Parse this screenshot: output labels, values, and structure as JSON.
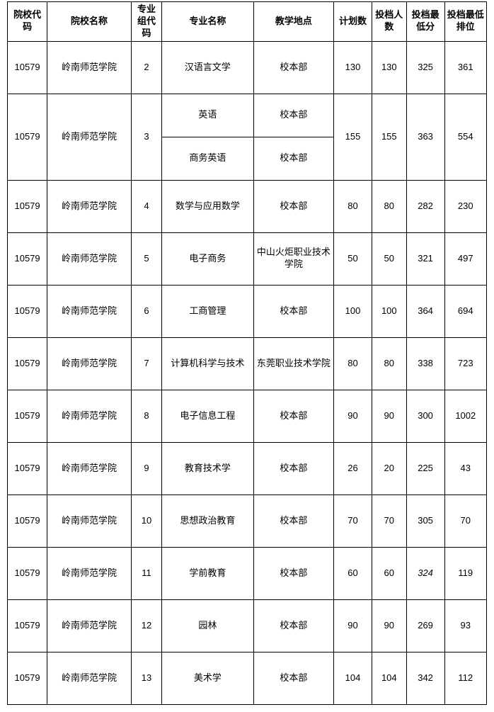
{
  "headers": {
    "col0": "院校代码",
    "col1": "院校名称",
    "col2": "专业组代码",
    "col3": "专业名称",
    "col4": "教学地点",
    "col5": "计划数",
    "col6": "投档人数",
    "col7": "投档最低分",
    "col8": "投档最低排位"
  },
  "colWidths": {
    "c0": 52,
    "c1": 110,
    "c2": 40,
    "c3": 120,
    "c4": 105,
    "c5": 50,
    "c6": 45,
    "c7": 50,
    "c8": 55
  },
  "rows": [
    {
      "code": "10579",
      "name": "岭南师范学院",
      "group": "2",
      "majors": [
        {
          "major": "汉语言文学",
          "loc": "校本部"
        }
      ],
      "plan": "130",
      "enroll": "130",
      "min": "325",
      "rank": "361"
    },
    {
      "code": "10579",
      "name": "岭南师范学院",
      "group": "3",
      "majors": [
        {
          "major": "英语",
          "loc": "校本部"
        },
        {
          "major": "商务英语",
          "loc": "校本部"
        }
      ],
      "plan": "155",
      "enroll": "155",
      "min": "363",
      "rank": "554"
    },
    {
      "code": "10579",
      "name": "岭南师范学院",
      "group": "4",
      "majors": [
        {
          "major": "数学与应用数学",
          "loc": "校本部"
        }
      ],
      "plan": "80",
      "enroll": "80",
      "min": "282",
      "rank": "230"
    },
    {
      "code": "10579",
      "name": "岭南师范学院",
      "group": "5",
      "majors": [
        {
          "major": "电子商务",
          "loc": "中山火炬职业技术学院"
        }
      ],
      "plan": "50",
      "enroll": "50",
      "min": "321",
      "rank": "497"
    },
    {
      "code": "10579",
      "name": "岭南师范学院",
      "group": "6",
      "majors": [
        {
          "major": "工商管理",
          "loc": "校本部"
        }
      ],
      "plan": "100",
      "enroll": "100",
      "min": "364",
      "rank": "694"
    },
    {
      "code": "10579",
      "name": "岭南师范学院",
      "group": "7",
      "majors": [
        {
          "major": "计算机科学与技术",
          "loc": "东莞职业技术学院"
        }
      ],
      "plan": "80",
      "enroll": "80",
      "min": "338",
      "rank": "723"
    },
    {
      "code": "10579",
      "name": "岭南师范学院",
      "group": "8",
      "majors": [
        {
          "major": "电子信息工程",
          "loc": "校本部"
        }
      ],
      "plan": "90",
      "enroll": "90",
      "min": "300",
      "rank": "1002"
    },
    {
      "code": "10579",
      "name": "岭南师范学院",
      "group": "9",
      "majors": [
        {
          "major": "教育技术学",
          "loc": "校本部"
        }
      ],
      "plan": "26",
      "enroll": "20",
      "min": "225",
      "rank": "43"
    },
    {
      "code": "10579",
      "name": "岭南师范学院",
      "group": "10",
      "majors": [
        {
          "major": "思想政治教育",
          "loc": "校本部"
        }
      ],
      "plan": "70",
      "enroll": "70",
      "min": "305",
      "rank": "70"
    },
    {
      "code": "10579",
      "name": "岭南师范学院",
      "group": "11",
      "majors": [
        {
          "major": "学前教育",
          "loc": "校本部"
        }
      ],
      "plan": "60",
      "enroll": "60",
      "min": "324",
      "rank": "119",
      "minItalic": true
    },
    {
      "code": "10579",
      "name": "岭南师范学院",
      "group": "12",
      "majors": [
        {
          "major": "园林",
          "loc": "校本部"
        }
      ],
      "plan": "90",
      "enroll": "90",
      "min": "269",
      "rank": "93"
    },
    {
      "code": "10579",
      "name": "岭南师范学院",
      "group": "13",
      "majors": [
        {
          "major": "美术学",
          "loc": "校本部"
        }
      ],
      "plan": "104",
      "enroll": "104",
      "min": "342",
      "rank": "112"
    }
  ]
}
